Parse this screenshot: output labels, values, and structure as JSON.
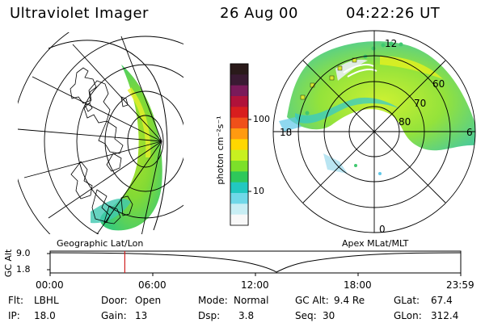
{
  "header": {
    "instrument": "Ultraviolet Imager",
    "date": "26 Aug 00",
    "time": "04:22:26 UT"
  },
  "colorbar": {
    "unit_label": "photon cm⁻²s⁻¹",
    "ticks": [
      "100",
      "10"
    ],
    "stops": [
      "#2a1a1a",
      "#3a1a33",
      "#7a1a5a",
      "#b0123a",
      "#d81e1e",
      "#f0501a",
      "#ff9a10",
      "#ffd700",
      "#c8f020",
      "#7ce02a",
      "#2ec85a",
      "#22c8c0",
      "#70d8e8",
      "#c8eef4",
      "#f8f8f8"
    ]
  },
  "maps": {
    "left_label": "Geographic Lat/Lon",
    "right_label": "Apex MLat/MLT",
    "polar_lat_labels": [
      "60",
      "70",
      "80"
    ],
    "polar_mlt_labels": [
      "12",
      "18",
      "6",
      "0"
    ]
  },
  "timeline": {
    "y_axis_label": "GC Alt",
    "y_ticks": [
      "9.0",
      "1.8"
    ],
    "x_ticks": [
      "00:00",
      "06:00",
      "12:00",
      "18:00",
      "23:59"
    ],
    "marker_time": "04:22",
    "marker_color": "#d02020"
  },
  "status": {
    "filter": {
      "label": "Flt:",
      "value": "LBHL"
    },
    "ip": {
      "label": "IP:",
      "value": "18.0"
    },
    "door": {
      "label": "Door:",
      "value": "Open"
    },
    "gain": {
      "label": "Gain:",
      "value": "13"
    },
    "mode": {
      "label": "Mode:",
      "value": "Normal"
    },
    "dsp": {
      "label": "Dsp:",
      "value": "3.8"
    },
    "gc_alt": {
      "label": "GC Alt:",
      "value": "9.4 Re"
    },
    "seq": {
      "label": "Seq:",
      "value": "30"
    },
    "glat": {
      "label": "GLat:",
      "value": "67.4"
    },
    "glon": {
      "label": "GLon:",
      "value": "312.4"
    }
  }
}
